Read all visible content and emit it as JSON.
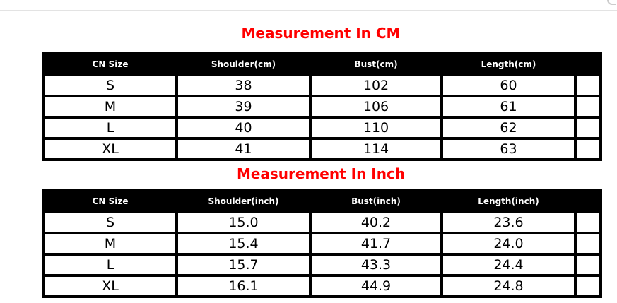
{
  "page": {
    "background_color": "#ffffff",
    "divider_color": "#e3e3e3",
    "accent_red": "#ff0000",
    "header_bg": "#000000",
    "header_text_color": "#ffffff"
  },
  "tables": [
    {
      "title": "Measurement In CM",
      "columns": [
        "CN Size",
        "Shoulder(cm)",
        "Bust(cm)",
        "Length(cm)",
        ""
      ],
      "rows": [
        [
          "S",
          "38",
          "102",
          "60",
          ""
        ],
        [
          "M",
          "39",
          "106",
          "61",
          ""
        ],
        [
          "L",
          "40",
          "110",
          "62",
          ""
        ],
        [
          "XL",
          "41",
          "114",
          "63",
          ""
        ]
      ]
    },
    {
      "title": "Measurement In Inch",
      "columns": [
        "CN Size",
        "Shoulder(inch)",
        "Bust(inch)",
        "Length(inch)",
        ""
      ],
      "rows": [
        [
          "S",
          "15.0",
          "40.2",
          "23.6",
          ""
        ],
        [
          "M",
          "15.4",
          "41.7",
          "24.0",
          ""
        ],
        [
          "L",
          "15.7",
          "43.3",
          "24.4",
          ""
        ],
        [
          "XL",
          "16.1",
          "44.9",
          "24.8",
          ""
        ]
      ]
    }
  ]
}
